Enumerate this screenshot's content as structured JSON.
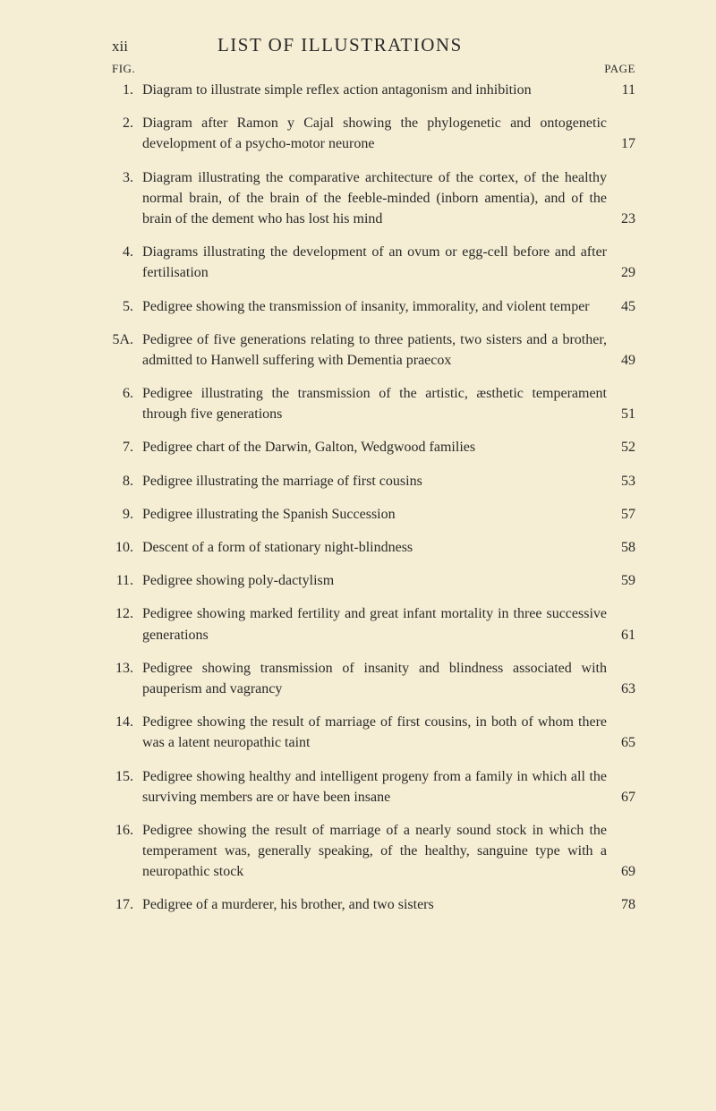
{
  "header": {
    "roman": "xii",
    "title": "LIST OF ILLUSTRATIONS",
    "fig_label": "FIG.",
    "page_label": "PAGE"
  },
  "entries": [
    {
      "num": "1.",
      "text": "Diagram to illustrate simple reflex action antagonism and inhibition",
      "page": "11"
    },
    {
      "num": "2.",
      "text": "Diagram after Ramon y Cajal showing the phylogenetic and ontogenetic development of a psycho-motor neurone",
      "page": "17"
    },
    {
      "num": "3.",
      "text": "Diagram illustrating the comparative architecture of the cortex, of the healthy normal brain, of the brain of the feeble-minded (inborn amentia), and of the brain of the dement who has lost his mind",
      "page": "23"
    },
    {
      "num": "4.",
      "text": "Diagrams illustrating the development of an ovum or egg-cell before and after fertilisation",
      "page": "29"
    },
    {
      "num": "5.",
      "text": "Pedigree showing the transmission of insanity, immorality, and violent temper",
      "page": "45"
    },
    {
      "num": "5A.",
      "text": "Pedigree of five generations relating to three patients, two sisters and a brother, admitted to Hanwell suffering with Dementia praecox",
      "page": "49"
    },
    {
      "num": "6.",
      "text": "Pedigree illustrating the transmission of the artistic, æsthetic temperament through five generations",
      "page": "51"
    },
    {
      "num": "7.",
      "text": "Pedigree chart of the Darwin, Galton, Wedgwood families",
      "page": "52"
    },
    {
      "num": "8.",
      "text": "Pedigree illustrating the marriage of first cousins",
      "page": "53"
    },
    {
      "num": "9.",
      "text": "Pedigree illustrating the Spanish Succession",
      "page": "57"
    },
    {
      "num": "10.",
      "text": "Descent of a form of stationary night-blindness",
      "page": "58"
    },
    {
      "num": "11.",
      "text": "Pedigree showing poly-dactylism",
      "page": "59"
    },
    {
      "num": "12.",
      "text": "Pedigree showing marked fertility and great infant mortality in three successive generations",
      "page": "61"
    },
    {
      "num": "13.",
      "text": "Pedigree showing transmission of insanity and blindness associated with pauperism and vagrancy",
      "page": "63"
    },
    {
      "num": "14.",
      "text": "Pedigree showing the result of marriage of first cousins, in both of whom there was a latent neuropathic taint",
      "page": "65"
    },
    {
      "num": "15.",
      "text": "Pedigree showing healthy and intelligent progeny from a family in which all the surviving members are or have been insane",
      "page": "67"
    },
    {
      "num": "16.",
      "text": "Pedigree showing the result of marriage of a nearly sound stock in which the temperament was, generally speaking, of the healthy, sanguine type with a neuropathic stock",
      "page": "69"
    },
    {
      "num": "17.",
      "text": "Pedigree of a murderer, his brother, and two sisters",
      "page": "78"
    }
  ]
}
